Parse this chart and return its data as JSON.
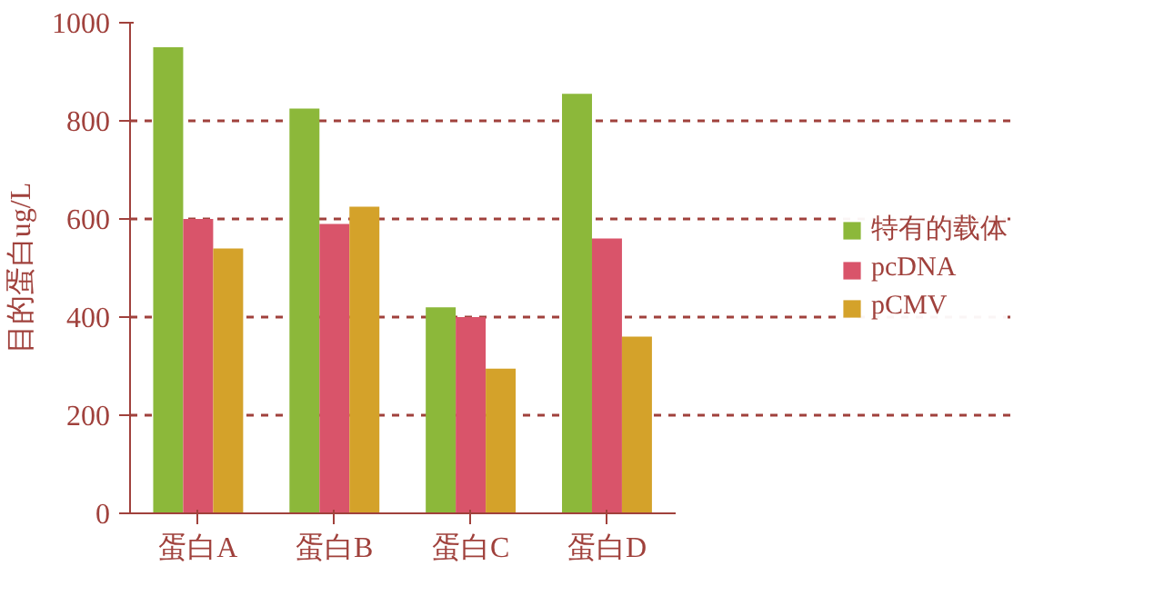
{
  "chart_data": {
    "type": "bar",
    "ylabel": "目的蛋白ug/L",
    "categories": [
      "蛋白A",
      "蛋白B",
      "蛋白C",
      "蛋白D"
    ],
    "series": [
      {
        "name": "特有的载体",
        "color": "#8cb83a",
        "values": [
          950,
          825,
          420,
          855
        ]
      },
      {
        "name": "pcDNA",
        "color": "#d9546a",
        "values": [
          600,
          590,
          400,
          560
        ]
      },
      {
        "name": "pCMV",
        "color": "#d4a22a",
        "values": [
          540,
          625,
          295,
          360
        ]
      }
    ],
    "ylim": [
      0,
      1000
    ],
    "yticks": [
      0,
      200,
      400,
      600,
      800,
      1000
    ],
    "grid": "y",
    "legend": "right"
  }
}
